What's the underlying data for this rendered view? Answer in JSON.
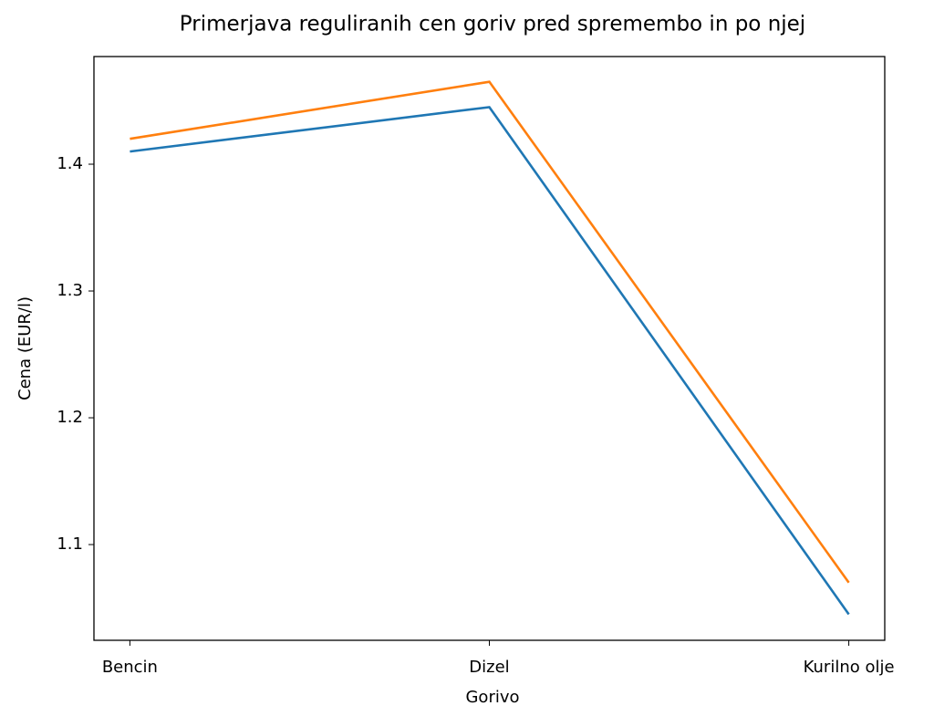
{
  "chart_data": {
    "type": "line",
    "title": "Primerjava reguliranih cen goriv pred spremembo in po njej",
    "x_label": "Gorivo",
    "y_label": "Cena (EUR/l)",
    "categories": [
      "Bencin",
      "Dizel",
      "Kurilno olje"
    ],
    "series": [
      {
        "color": "#1f77b4",
        "values": [
          1.41,
          1.445,
          1.045
        ]
      },
      {
        "color": "#ff7f0e",
        "values": [
          1.42,
          1.465,
          1.07
        ]
      }
    ],
    "ylim": [
      1.0245,
      1.4849
    ],
    "yticks": [
      1.1,
      1.2,
      1.3,
      1.4
    ]
  }
}
